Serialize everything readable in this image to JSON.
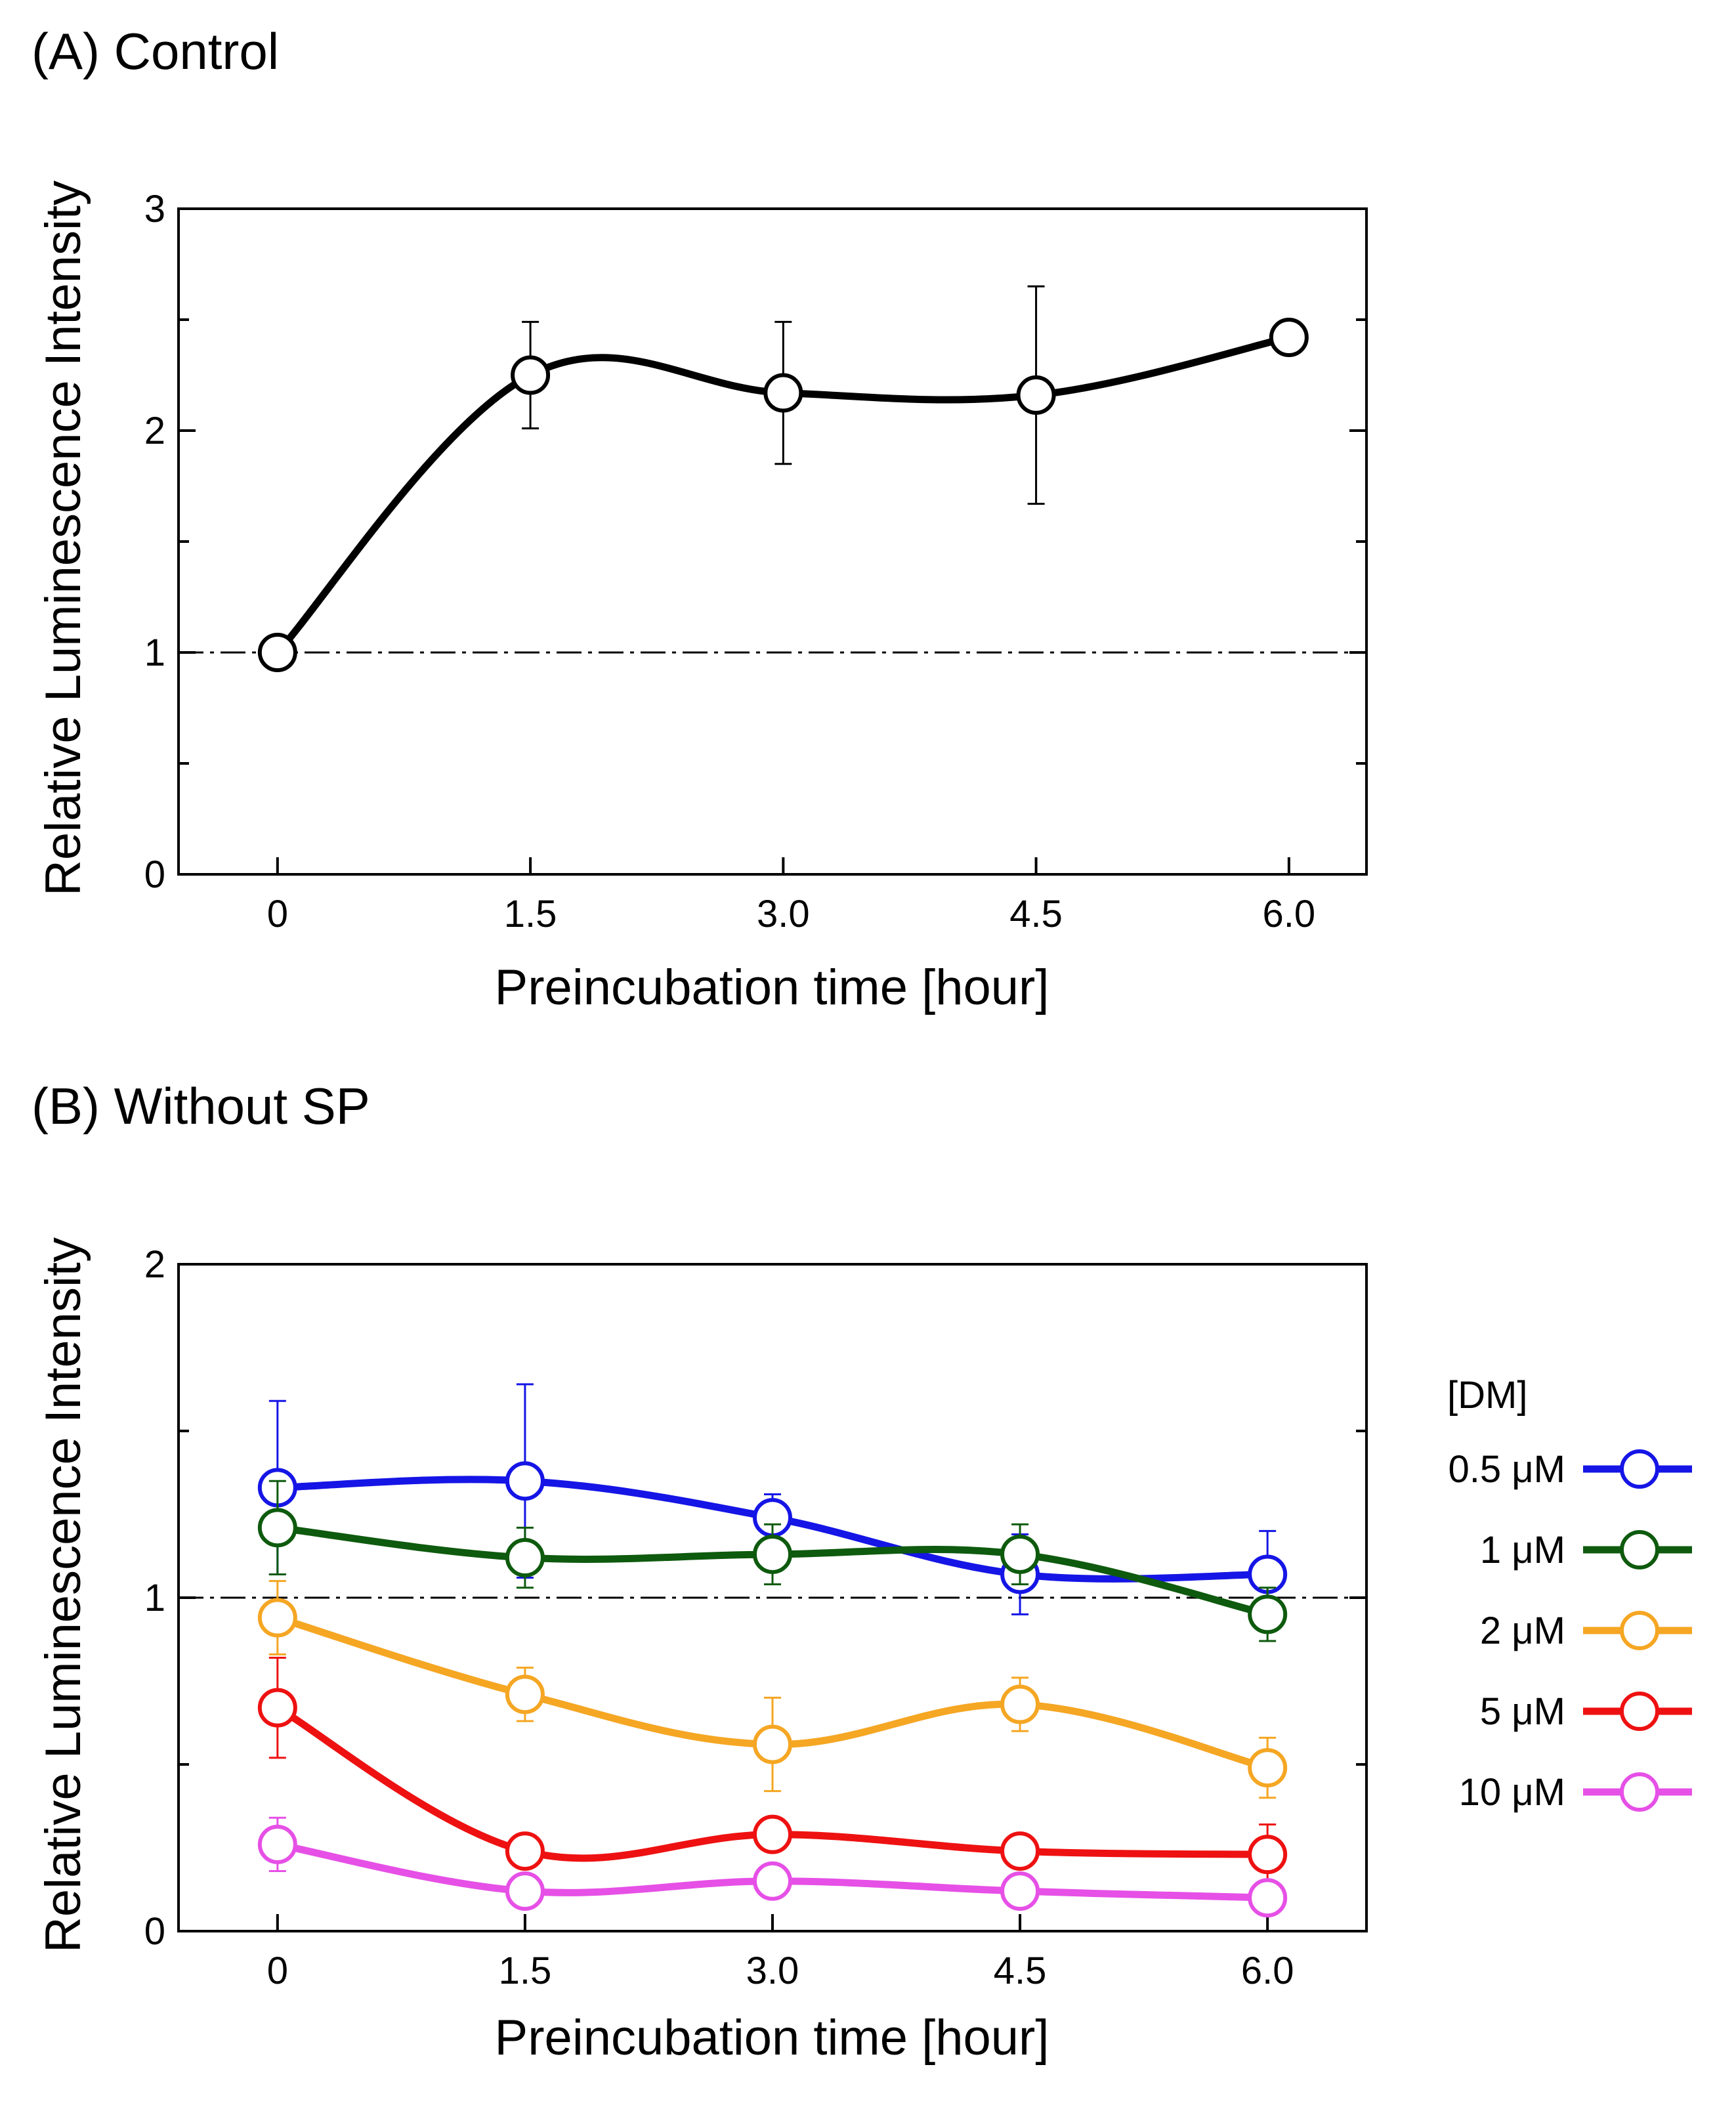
{
  "chart_data": [
    {
      "type": "line",
      "title": "(A) Control",
      "xlabel": "Preincubation time [hour]",
      "ylabel": "Relative Luminescence Intensity",
      "x_ticks": [
        "0",
        "1.5",
        "3.0",
        "4.5",
        "6.0"
      ],
      "y_ticks": [
        "0",
        "1",
        "2",
        "3"
      ],
      "xlim": [
        -0.6,
        6.6
      ],
      "ylim": [
        0,
        3
      ],
      "reference_line": 1,
      "series": [
        {
          "name": "Control",
          "color": "#000000",
          "x": [
            0,
            1.5,
            3.0,
            4.5,
            6.0
          ],
          "values": [
            1.0,
            2.25,
            2.17,
            2.16,
            2.42
          ],
          "error": [
            0,
            0.24,
            0.32,
            0.49,
            0.06
          ]
        }
      ]
    },
    {
      "type": "line",
      "title": "(B) Without SP",
      "xlabel": "Preincubation time [hour]",
      "ylabel": "Relative Luminescence Intensity",
      "x_ticks": [
        "0",
        "1.5",
        "3.0",
        "4.5",
        "6.0"
      ],
      "y_ticks": [
        "0",
        "1",
        "2"
      ],
      "xlim": [
        -0.6,
        6.6
      ],
      "ylim": [
        0,
        2
      ],
      "reference_line": 1,
      "legend_title": "[DM]",
      "legend_position": "right",
      "series": [
        {
          "name": "0.5 μM",
          "color": "#1515e6",
          "x": [
            0,
            1.5,
            3.0,
            4.5,
            6.0
          ],
          "values": [
            1.33,
            1.35,
            1.24,
            1.07,
            1.07
          ],
          "error": [
            0.26,
            0.29,
            0.07,
            0.12,
            0.13
          ]
        },
        {
          "name": "1 μM",
          "color": "#0e5a0e",
          "x": [
            0,
            1.5,
            3.0,
            4.5,
            6.0
          ],
          "values": [
            1.21,
            1.12,
            1.13,
            1.13,
            0.95
          ],
          "error": [
            0.14,
            0.09,
            0.09,
            0.09,
            0.08
          ]
        },
        {
          "name": "2 μM",
          "color": "#f5a623",
          "x": [
            0,
            1.5,
            3.0,
            4.5,
            6.0
          ],
          "values": [
            0.94,
            0.71,
            0.56,
            0.68,
            0.49
          ],
          "error": [
            0.11,
            0.08,
            0.14,
            0.08,
            0.09
          ]
        },
        {
          "name": "5 μM",
          "color": "#ee1111",
          "x": [
            0,
            1.5,
            3.0,
            4.5,
            6.0
          ],
          "values": [
            0.67,
            0.24,
            0.29,
            0.24,
            0.23
          ],
          "error": [
            0.15,
            0.05,
            0.04,
            0.04,
            0.09
          ]
        },
        {
          "name": "10 μM",
          "color": "#e650e6",
          "x": [
            0,
            1.5,
            3.0,
            4.5,
            6.0
          ],
          "values": [
            0.26,
            0.12,
            0.15,
            0.12,
            0.1
          ],
          "error": [
            0.08,
            0.02,
            0.02,
            0.02,
            0.02
          ]
        }
      ]
    }
  ]
}
